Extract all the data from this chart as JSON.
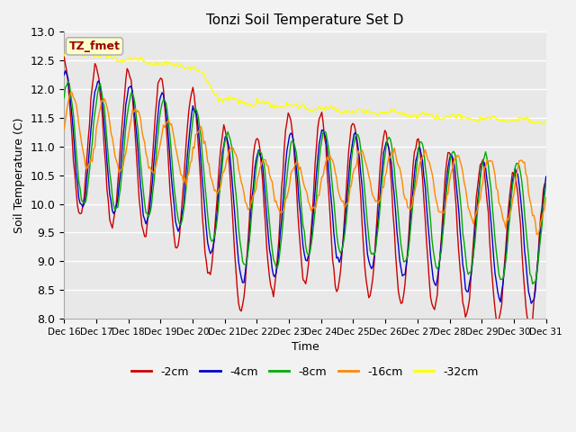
{
  "title": "Tonzi Soil Temperature Set D",
  "xlabel": "Time",
  "ylabel": "Soil Temperature (C)",
  "ylim": [
    8.0,
    13.0
  ],
  "yticks": [
    8.0,
    8.5,
    9.0,
    9.5,
    10.0,
    10.5,
    11.0,
    11.5,
    12.0,
    12.5,
    13.0
  ],
  "xtick_labels": [
    "Dec 16",
    "Dec 17",
    "Dec 18",
    "Dec 19",
    "Dec 20",
    "Dec 21",
    "Dec 22",
    "Dec 23",
    "Dec 24",
    "Dec 25",
    "Dec 26",
    "Dec 27",
    "Dec 28",
    "Dec 29",
    "Dec 30",
    "Dec 31"
  ],
  "legend_entries": [
    "-2cm",
    "-4cm",
    "-8cm",
    "-16cm",
    "-32cm"
  ],
  "line_colors": [
    "#cc0000",
    "#0000cc",
    "#00aa00",
    "#ff8800",
    "#ffff00"
  ],
  "annotation_label": "TZ_fmet",
  "annotation_color": "#990000",
  "annotation_bg": "#ffffcc",
  "plot_bg_color": "#e8e8e8",
  "fig_bg_color": "#f2f2f2",
  "grid_color": "#ffffff",
  "figsize": [
    6.4,
    4.8
  ],
  "dpi": 100
}
